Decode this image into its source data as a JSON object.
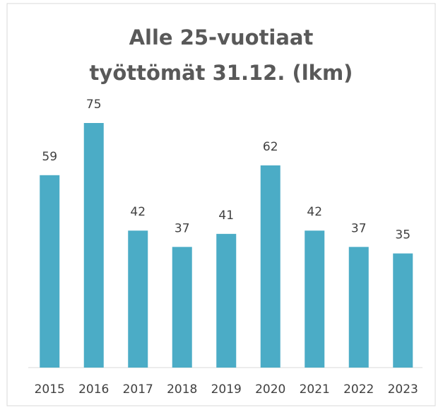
{
  "chart_data": {
    "type": "bar",
    "title": "Alle 25-vuotiaat työttömät 31.12. (lkm)",
    "categories": [
      "2015",
      "2016",
      "2017",
      "2018",
      "2019",
      "2020",
      "2021",
      "2022",
      "2023"
    ],
    "values": [
      59,
      75,
      42,
      37,
      41,
      62,
      42,
      37,
      35
    ],
    "color": "#4bacc6"
  }
}
